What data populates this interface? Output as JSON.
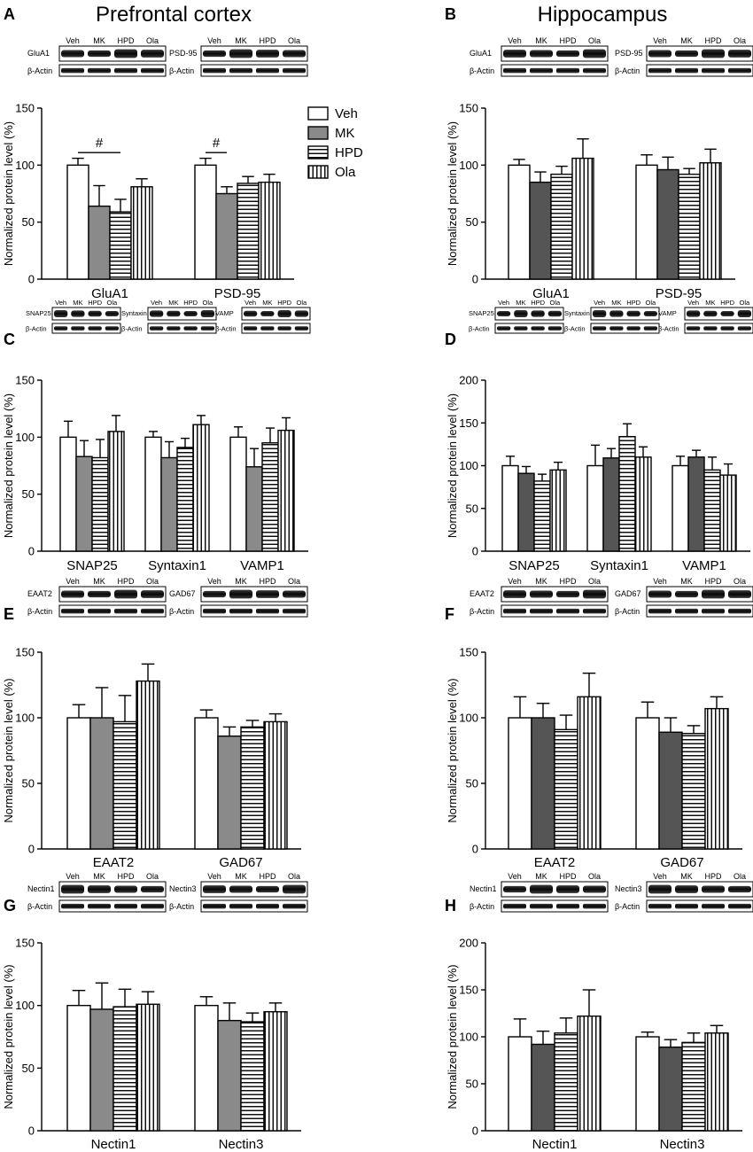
{
  "titles": {
    "left": "Prefrontal cortex",
    "right": "Hippocampus"
  },
  "legend": {
    "entries": [
      "Veh",
      "MK",
      "HPD",
      "Ola"
    ]
  },
  "blot_lanes": [
    "Veh",
    "MK",
    "HPD",
    "Ola"
  ],
  "colors": {
    "veh": "#ffffff",
    "mk_light": "#8a8a8a",
    "mk_dark": "#555555",
    "stroke": "#000000"
  },
  "chart_data": [
    {
      "panel": "A",
      "type": "bar",
      "ylabel": "Normalized protein level (%)",
      "ylim": [
        0,
        150
      ],
      "yticks": [
        0,
        50,
        100,
        150
      ],
      "blots": [
        {
          "target": "GluA1",
          "loading": "β-Actin"
        },
        {
          "target": "PSD-95",
          "loading": "β-Actin"
        }
      ],
      "categories": [
        "GluA1",
        "PSD-95"
      ],
      "series": [
        {
          "name": "Veh",
          "values": [
            100,
            100
          ],
          "errors": [
            6,
            6
          ]
        },
        {
          "name": "MK",
          "values": [
            64,
            75
          ],
          "errors": [
            18,
            6
          ]
        },
        {
          "name": "HPD",
          "values": [
            59,
            84
          ],
          "errors": [
            11,
            6
          ]
        },
        {
          "name": "Ola",
          "values": [
            81,
            85
          ],
          "errors": [
            7,
            7
          ]
        }
      ],
      "annotations": [
        {
          "text": "#",
          "category": 0,
          "from": "Veh",
          "to": "HPD",
          "y": 111
        },
        {
          "text": "#",
          "category": 1,
          "from": "Veh",
          "to": "MK",
          "y": 111
        }
      ]
    },
    {
      "panel": "B",
      "type": "bar",
      "ylabel": "Normalized protein level (%)",
      "ylim": [
        0,
        150
      ],
      "yticks": [
        0,
        50,
        100,
        150
      ],
      "blots": [
        {
          "target": "GluA1",
          "loading": "β-Actin"
        },
        {
          "target": "PSD-95",
          "loading": "β-Actin"
        }
      ],
      "categories": [
        "GluA1",
        "PSD-95"
      ],
      "series": [
        {
          "name": "Veh",
          "values": [
            100,
            100
          ],
          "errors": [
            5,
            9
          ]
        },
        {
          "name": "MK",
          "values": [
            85,
            96
          ],
          "errors": [
            9,
            11
          ]
        },
        {
          "name": "HPD",
          "values": [
            92,
            92
          ],
          "errors": [
            7,
            5
          ]
        },
        {
          "name": "Ola",
          "values": [
            106,
            102
          ],
          "errors": [
            17,
            12
          ]
        }
      ]
    },
    {
      "panel": "C",
      "type": "bar",
      "ylabel": "Normalized protein level (%)",
      "ylim": [
        0,
        150
      ],
      "yticks": [
        0,
        50,
        100,
        150
      ],
      "blots": [
        {
          "target": "SNAP25",
          "loading": "β-Actin"
        },
        {
          "target": "Syntaxin1",
          "loading": "β-Actin"
        },
        {
          "target": "VAMP",
          "loading": "β-Actin"
        }
      ],
      "categories": [
        "SNAP25",
        "Syntaxin1",
        "VAMP1"
      ],
      "series": [
        {
          "name": "Veh",
          "values": [
            100,
            100,
            100
          ],
          "errors": [
            14,
            5,
            9
          ]
        },
        {
          "name": "MK",
          "values": [
            83,
            82,
            74
          ],
          "errors": [
            14,
            14,
            16
          ]
        },
        {
          "name": "HPD",
          "values": [
            82,
            91,
            95
          ],
          "errors": [
            16,
            8,
            13
          ]
        },
        {
          "name": "Ola",
          "values": [
            105,
            111,
            106
          ],
          "errors": [
            14,
            8,
            11
          ]
        }
      ]
    },
    {
      "panel": "D",
      "type": "bar",
      "ylabel": "Normalized protein level (%)",
      "ylim": [
        0,
        200
      ],
      "yticks": [
        0,
        50,
        100,
        150,
        200
      ],
      "blots": [
        {
          "target": "SNAP25",
          "loading": "β-Actin"
        },
        {
          "target": "Syntaxin1",
          "loading": "β-Actin"
        },
        {
          "target": "VAMP",
          "loading": "β-Actin"
        }
      ],
      "categories": [
        "SNAP25",
        "Syntaxin1",
        "VAMP1"
      ],
      "series": [
        {
          "name": "Veh",
          "values": [
            100,
            100,
            100
          ],
          "errors": [
            11,
            24,
            11
          ]
        },
        {
          "name": "MK",
          "values": [
            91,
            109,
            110
          ],
          "errors": [
            8,
            11,
            8
          ]
        },
        {
          "name": "HPD",
          "values": [
            82,
            134,
            95
          ],
          "errors": [
            8,
            15,
            15
          ]
        },
        {
          "name": "Ola",
          "values": [
            95,
            110,
            89
          ],
          "errors": [
            9,
            12,
            13
          ]
        }
      ]
    },
    {
      "panel": "E",
      "type": "bar",
      "ylabel": "Normalized protein level (%)",
      "ylim": [
        0,
        150
      ],
      "yticks": [
        0,
        50,
        100,
        150
      ],
      "blots": [
        {
          "target": "EAAT2",
          "loading": "β-Actin"
        },
        {
          "target": "GAD67",
          "loading": "β-Actin"
        }
      ],
      "categories": [
        "EAAT2",
        "GAD67"
      ],
      "series": [
        {
          "name": "Veh",
          "values": [
            100,
            100
          ],
          "errors": [
            10,
            6
          ]
        },
        {
          "name": "MK",
          "values": [
            100,
            86
          ],
          "errors": [
            23,
            7
          ]
        },
        {
          "name": "HPD",
          "values": [
            97,
            93
          ],
          "errors": [
            20,
            5
          ]
        },
        {
          "name": "Ola",
          "values": [
            128,
            97
          ],
          "errors": [
            13,
            6
          ]
        }
      ]
    },
    {
      "panel": "F",
      "type": "bar",
      "ylabel": "Normalized protein level (%)",
      "ylim": [
        0,
        150
      ],
      "yticks": [
        0,
        50,
        100,
        150
      ],
      "blots": [
        {
          "target": "EAAT2",
          "loading": "β-Actin"
        },
        {
          "target": "GAD67",
          "loading": "β-Actin"
        }
      ],
      "categories": [
        "EAAT2",
        "GAD67"
      ],
      "series": [
        {
          "name": "Veh",
          "values": [
            100,
            100
          ],
          "errors": [
            16,
            12
          ]
        },
        {
          "name": "MK",
          "values": [
            100,
            89
          ],
          "errors": [
            11,
            11
          ]
        },
        {
          "name": "HPD",
          "values": [
            91,
            88
          ],
          "errors": [
            11,
            6
          ]
        },
        {
          "name": "Ola",
          "values": [
            116,
            107
          ],
          "errors": [
            18,
            9
          ]
        }
      ]
    },
    {
      "panel": "G",
      "type": "bar",
      "ylabel": "Normalized protein level (%)",
      "ylim": [
        0,
        150
      ],
      "yticks": [
        0,
        50,
        100,
        150
      ],
      "blots": [
        {
          "target": "Nectin1",
          "loading": "β-Actin"
        },
        {
          "target": "Nectin3",
          "loading": "β-Actin"
        }
      ],
      "categories": [
        "Nectin1",
        "Nectin3"
      ],
      "series": [
        {
          "name": "Veh",
          "values": [
            100,
            100
          ],
          "errors": [
            12,
            7
          ]
        },
        {
          "name": "MK",
          "values": [
            97,
            88
          ],
          "errors": [
            21,
            14
          ]
        },
        {
          "name": "HPD",
          "values": [
            99,
            87
          ],
          "errors": [
            14,
            7
          ]
        },
        {
          "name": "Ola",
          "values": [
            101,
            95
          ],
          "errors": [
            10,
            7
          ]
        }
      ]
    },
    {
      "panel": "H",
      "type": "bar",
      "ylabel": "Normalized protein level (%)",
      "ylim": [
        0,
        200
      ],
      "yticks": [
        0,
        50,
        100,
        150,
        200
      ],
      "blots": [
        {
          "target": "Nectin1",
          "loading": "β-Actin"
        },
        {
          "target": "Nectin3",
          "loading": "β-Actin"
        }
      ],
      "categories": [
        "Nectin1",
        "Nectin3"
      ],
      "series": [
        {
          "name": "Veh",
          "values": [
            100,
            100
          ],
          "errors": [
            19,
            5
          ]
        },
        {
          "name": "MK",
          "values": [
            92,
            89
          ],
          "errors": [
            14,
            8
          ]
        },
        {
          "name": "HPD",
          "values": [
            104,
            94
          ],
          "errors": [
            16,
            10
          ]
        },
        {
          "name": "Ola",
          "values": [
            122,
            104
          ],
          "errors": [
            28,
            8
          ]
        }
      ]
    }
  ]
}
